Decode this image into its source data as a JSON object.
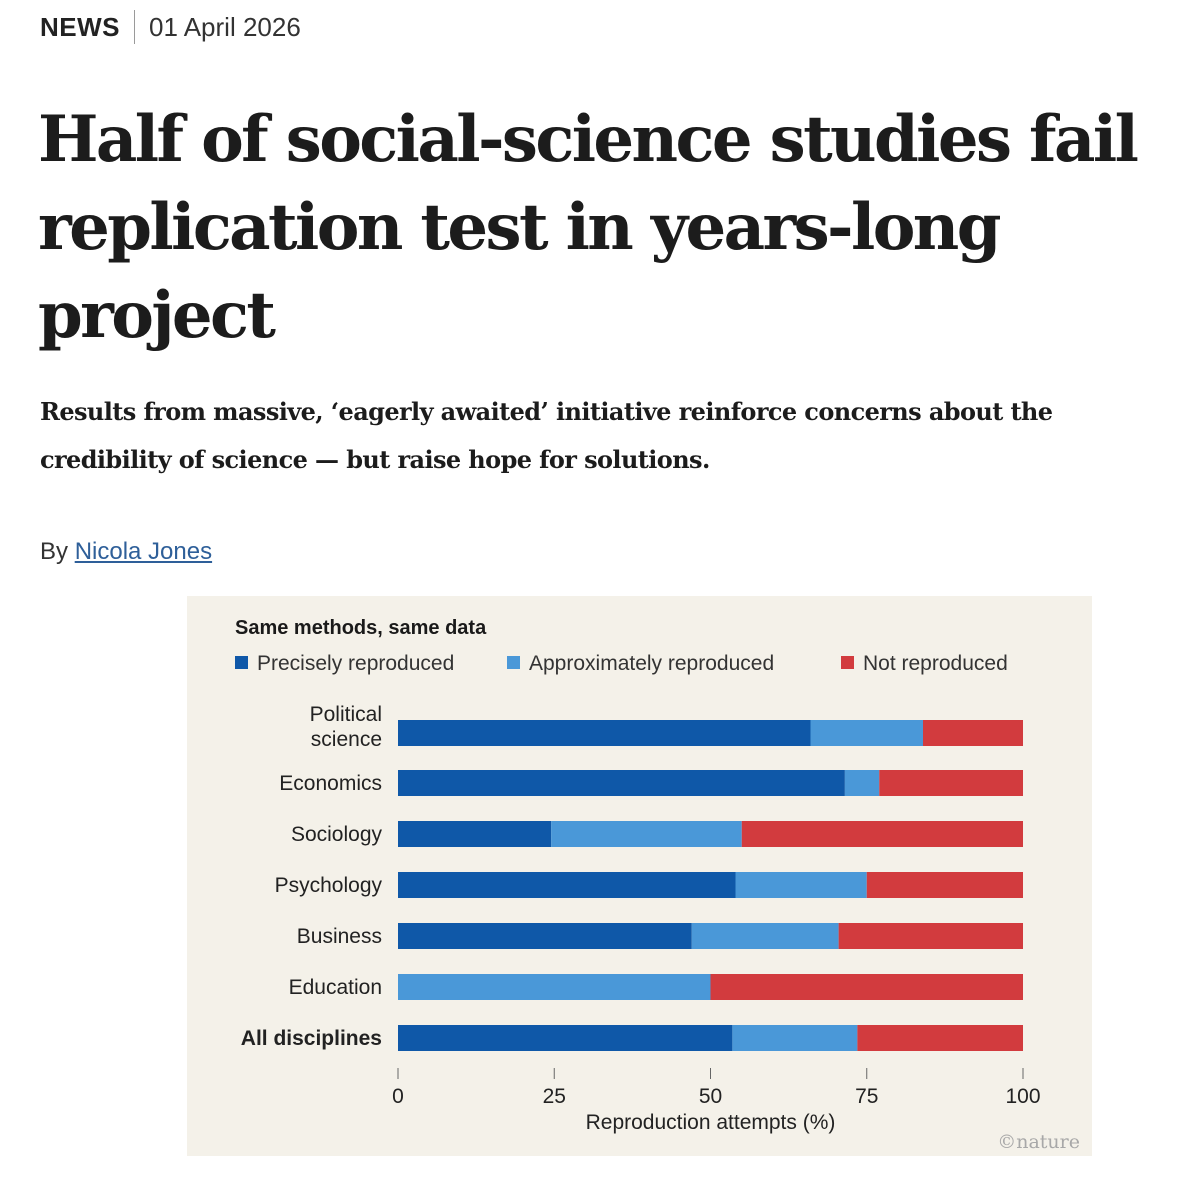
{
  "article": {
    "type": "NEWS",
    "date": "01 April 2026",
    "title": "Half of social-science studies fail replication test in years-long project",
    "standfirst": "Results from massive, ‘eagerly awaited’ initiative reinforce concerns about the credibility of science — but raise hope for solutions.",
    "byline_prefix": "By",
    "author": "Nicola Jones"
  },
  "figure": {
    "watermark": "©nature"
  },
  "colors": {
    "precise": "#0f58a8",
    "approx": "#4a98d8",
    "not": "#d23b3e",
    "panel": "#f4f1e9"
  },
  "chart_data": {
    "type": "bar",
    "orientation": "horizontal",
    "stacked": true,
    "title": "Same methods, same data",
    "xlabel": "Reproduction attempts (%)",
    "xlim": [
      0,
      100
    ],
    "xticks": [
      0,
      25,
      50,
      75,
      100
    ],
    "categories": [
      "Political science",
      "Economics",
      "Sociology",
      "Psychology",
      "Business",
      "Education",
      "All disciplines"
    ],
    "category_lines": [
      [
        "Political",
        "science"
      ],
      [
        "Economics"
      ],
      [
        "Sociology"
      ],
      [
        "Psychology"
      ],
      [
        "Business"
      ],
      [
        "Education"
      ],
      [
        "All disciplines"
      ]
    ],
    "series": [
      {
        "name": "Precisely reproduced",
        "values": [
          66,
          71.5,
          24.5,
          54,
          47,
          0,
          53.5
        ]
      },
      {
        "name": "Approximately reproduced",
        "values": [
          18,
          5.5,
          30.5,
          21,
          23.5,
          50,
          20
        ]
      },
      {
        "name": "Not reproduced",
        "values": [
          16,
          23,
          45,
          25,
          29.5,
          50,
          26.5
        ]
      }
    ],
    "legend_position": "top"
  }
}
